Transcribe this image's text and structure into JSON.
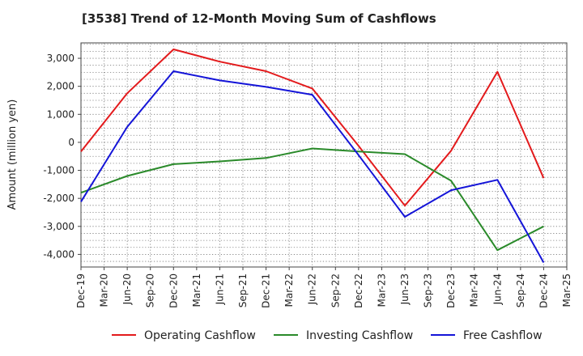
{
  "chart_data": {
    "type": "line",
    "title": "[3538]  Trend of 12-Month Moving Sum of Cashflows",
    "xlabel": "",
    "ylabel": "Amount (million yen)",
    "categories": [
      "Dec-19",
      "Mar-20",
      "Jun-20",
      "Sep-20",
      "Dec-20",
      "Mar-21",
      "Jun-21",
      "Sep-21",
      "Dec-21",
      "Mar-22",
      "Jun-22",
      "Sep-22",
      "Dec-22",
      "Mar-23",
      "Jun-23",
      "Sep-23",
      "Dec-23",
      "Mar-24",
      "Jun-24",
      "Sep-24",
      "Dec-24",
      "Mar-25"
    ],
    "yticks": [
      3000,
      2000,
      1000,
      0,
      -1000,
      -2000,
      -3000,
      -4000
    ],
    "ytick_labels": [
      "3,000",
      "2,000",
      "1,000",
      "0",
      "-1,000",
      "-2,000",
      "-3,000",
      "-4,000"
    ],
    "ylim": [
      -4450,
      3550
    ],
    "grid": true,
    "legend_position": "bottom",
    "series": [
      {
        "name": "Operating Cashflow",
        "color": "#e31a1c",
        "points": [
          [
            "Dec-19",
            -330
          ],
          [
            "Jun-20",
            1750
          ],
          [
            "Dec-20",
            3320
          ],
          [
            "Jun-21",
            2880
          ],
          [
            "Dec-21",
            2540
          ],
          [
            "Jun-22",
            1920
          ],
          [
            "Dec-22",
            -130
          ],
          [
            "Jun-23",
            -2260
          ],
          [
            "Dec-23",
            -300
          ],
          [
            "Jun-24",
            2520
          ],
          [
            "Dec-24",
            -1280
          ]
        ]
      },
      {
        "name": "Investing Cashflow",
        "color": "#2a8a2a",
        "points": [
          [
            "Dec-19",
            -1800
          ],
          [
            "Jun-20",
            -1200
          ],
          [
            "Dec-20",
            -780
          ],
          [
            "Jun-21",
            -680
          ],
          [
            "Dec-21",
            -560
          ],
          [
            "Jun-22",
            -220
          ],
          [
            "Dec-22",
            -330
          ],
          [
            "Jun-23",
            -420
          ],
          [
            "Dec-23",
            -1370
          ],
          [
            "Jun-24",
            -3850
          ],
          [
            "Dec-24",
            -3000
          ]
        ]
      },
      {
        "name": "Free Cashflow",
        "color": "#1414d8",
        "points": [
          [
            "Dec-19",
            -2120
          ],
          [
            "Jun-20",
            550
          ],
          [
            "Dec-20",
            2540
          ],
          [
            "Jun-21",
            2210
          ],
          [
            "Dec-21",
            1980
          ],
          [
            "Jun-22",
            1700
          ],
          [
            "Dec-22",
            -460
          ],
          [
            "Jun-23",
            -2660
          ],
          [
            "Dec-23",
            -1710
          ],
          [
            "Jun-24",
            -1340
          ],
          [
            "Dec-24",
            -4290
          ]
        ]
      }
    ]
  }
}
